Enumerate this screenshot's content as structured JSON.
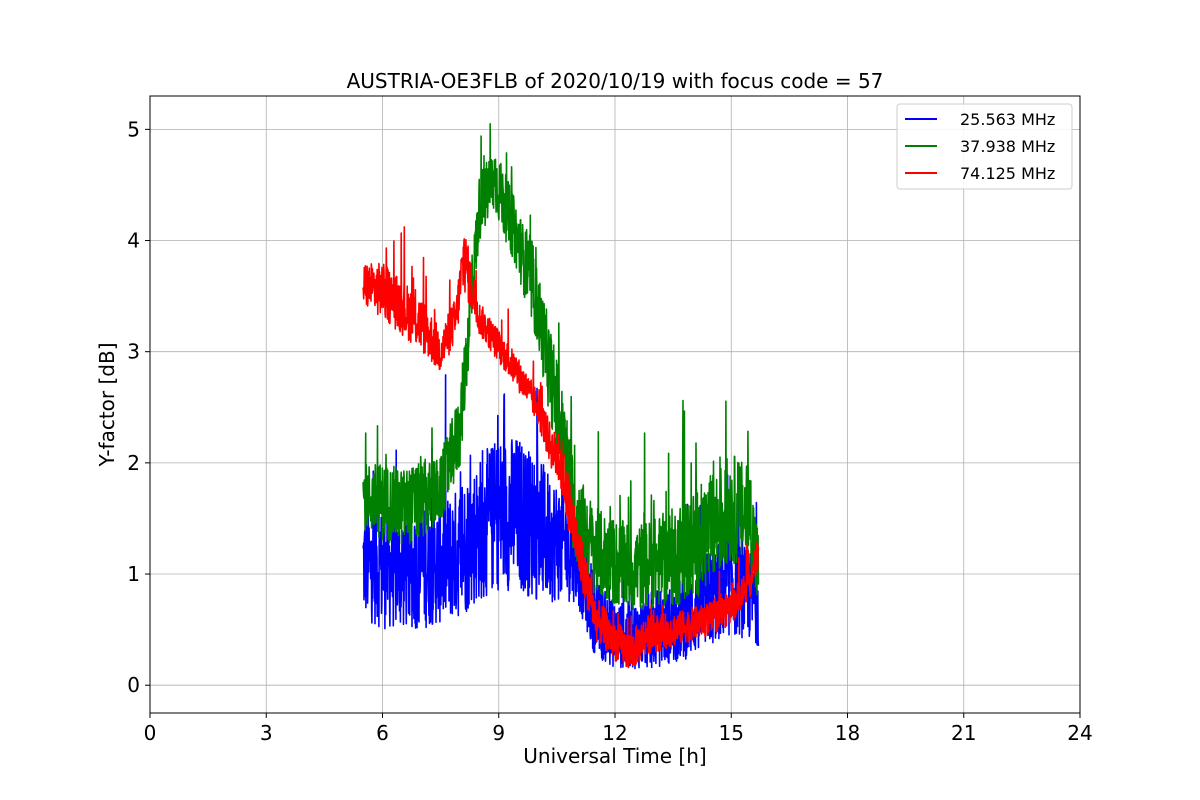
{
  "chart_data": {
    "type": "line",
    "title": "AUSTRIA-OE3FLB of 2020/10/19 with focus code = 57",
    "xlabel": "Universal Time [h]",
    "ylabel": "Y-factor [dB]",
    "xlim": [
      0,
      24
    ],
    "ylim": [
      -0.25,
      5.3
    ],
    "xticks": [
      0,
      3,
      6,
      9,
      12,
      15,
      18,
      21,
      24
    ],
    "yticks": [
      0,
      1,
      2,
      3,
      4,
      5
    ],
    "grid": true,
    "legend_position": "top-right",
    "series": [
      {
        "name": "25.563 MHz",
        "color": "#0000ff",
        "x": [
          5.5,
          6.0,
          6.5,
          7.0,
          7.5,
          8.0,
          8.5,
          9.0,
          9.5,
          10.0,
          10.5,
          11.0,
          11.25,
          11.5,
          12.0,
          12.5,
          13.0,
          13.5,
          14.0,
          14.5,
          15.0,
          15.5,
          15.7
        ],
        "y": [
          1.1,
          1.05,
          1.05,
          1.05,
          1.1,
          1.2,
          1.4,
          1.55,
          1.55,
          1.4,
          1.3,
          1.2,
          0.9,
          0.6,
          0.45,
          0.45,
          0.5,
          0.55,
          0.65,
          0.8,
          0.9,
          0.8,
          0.75
        ],
        "noise": [
          0.5,
          0.55,
          0.55,
          0.55,
          0.55,
          0.6,
          0.65,
          0.7,
          0.7,
          0.65,
          0.55,
          0.45,
          0.4,
          0.35,
          0.3,
          0.3,
          0.35,
          0.35,
          0.4,
          0.45,
          0.45,
          0.4,
          0.4
        ]
      },
      {
        "name": "37.938 MHz",
        "color": "#008000",
        "x": [
          5.5,
          6.0,
          6.5,
          7.0,
          7.5,
          8.0,
          8.5,
          8.9,
          9.5,
          10.0,
          10.5,
          11.0,
          11.5,
          12.0,
          12.5,
          13.0,
          13.5,
          14.0,
          14.5,
          15.0,
          15.5,
          15.7
        ],
        "y": [
          1.7,
          1.65,
          1.6,
          1.65,
          1.75,
          2.3,
          4.3,
          4.55,
          4.0,
          3.4,
          2.5,
          1.5,
          1.2,
          1.1,
          1.05,
          1.1,
          1.15,
          1.25,
          1.4,
          1.6,
          1.5,
          1.0
        ],
        "noise": [
          0.3,
          0.35,
          0.35,
          0.35,
          0.3,
          0.35,
          0.3,
          0.3,
          0.3,
          0.35,
          0.45,
          0.45,
          0.4,
          0.4,
          0.4,
          0.4,
          0.45,
          0.5,
          0.5,
          0.5,
          0.45,
          0.4
        ]
      },
      {
        "name": "74.125 MHz",
        "color": "#ff0000",
        "x": [
          5.5,
          6.0,
          6.5,
          7.0,
          7.5,
          7.9,
          8.1,
          8.5,
          9.0,
          9.5,
          10.0,
          10.4,
          10.6,
          11.0,
          11.5,
          12.0,
          12.4,
          12.8,
          13.5,
          14.0,
          14.5,
          15.0,
          15.5,
          15.7
        ],
        "y": [
          3.6,
          3.55,
          3.4,
          3.25,
          3.0,
          3.3,
          3.85,
          3.3,
          3.05,
          2.8,
          2.5,
          2.1,
          2.0,
          1.3,
          0.6,
          0.4,
          0.3,
          0.45,
          0.5,
          0.55,
          0.6,
          0.7,
          0.95,
          1.2
        ],
        "noise": [
          0.2,
          0.25,
          0.25,
          0.25,
          0.2,
          0.2,
          0.3,
          0.15,
          0.15,
          0.15,
          0.15,
          0.2,
          0.25,
          0.25,
          0.2,
          0.18,
          0.18,
          0.18,
          0.15,
          0.15,
          0.15,
          0.15,
          0.15,
          0.15
        ]
      }
    ]
  }
}
